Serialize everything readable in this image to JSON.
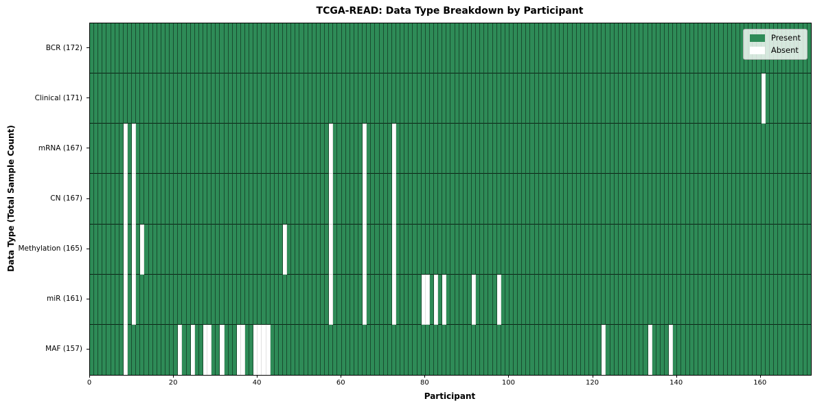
{
  "chart_data": {
    "type": "heatmap",
    "title": "TCGA-READ: Data Type Breakdown by Participant",
    "xlabel": "Participant",
    "ylabel": "Data Type (Total Sample Count)",
    "n_participants": 172,
    "x_ticks": [
      0,
      20,
      40,
      60,
      80,
      100,
      120,
      140,
      160
    ],
    "colors": {
      "present": "#2e8b57",
      "absent": "#ffffff"
    },
    "legend": {
      "present_label": "Present",
      "absent_label": "Absent"
    },
    "legend_position": "upper right",
    "grid": "cell-borders",
    "rows": [
      {
        "label": "BCR (172)",
        "name": "BCR",
        "total": 172,
        "absent_participants": []
      },
      {
        "label": "Clinical (171)",
        "name": "Clinical",
        "total": 171,
        "absent_participants": [
          160
        ]
      },
      {
        "label": "mRNA (167)",
        "name": "mRNA",
        "total": 167,
        "absent_participants": [
          8,
          10,
          57,
          65,
          72
        ]
      },
      {
        "label": "CN (167)",
        "name": "CN",
        "total": 167,
        "absent_participants": [
          8,
          10,
          57,
          65,
          72
        ]
      },
      {
        "label": "Methylation (165)",
        "name": "Methylation",
        "total": 165,
        "absent_participants": [
          8,
          10,
          12,
          46,
          57,
          65,
          72
        ]
      },
      {
        "label": "miR (161)",
        "name": "miR",
        "total": 161,
        "absent_participants": [
          8,
          10,
          57,
          65,
          72,
          79,
          80,
          82,
          84,
          91,
          97
        ]
      },
      {
        "label": "MAF (157)",
        "name": "MAF",
        "total": 157,
        "absent_participants": [
          8,
          21,
          24,
          27,
          28,
          31,
          35,
          36,
          39,
          40,
          41,
          42,
          122,
          133,
          138
        ]
      }
    ]
  }
}
